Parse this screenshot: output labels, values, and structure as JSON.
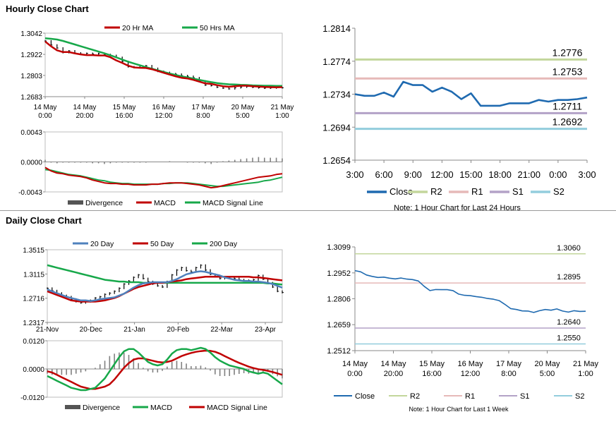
{
  "sections": {
    "hourly_title": "Hourly Close Chart",
    "daily_title": "Daily Close Chart"
  },
  "colors": {
    "price": "#000000",
    "ma_red": "#c00000",
    "ma_green": "#17a84a",
    "ma_blue": "#4f81bd",
    "divergence": "#808080",
    "close": "#1f6ab0",
    "r2": "#c3d69b",
    "r1": "#e6b9b8",
    "s1": "#b3a2c7",
    "s2": "#93cddd"
  },
  "chart_data": [
    {
      "id": "hourly_price",
      "type": "line",
      "ylim": [
        1.2683,
        1.3042
      ],
      "yticks": [
        "1.3042",
        "1.2922",
        "1.2803",
        "1.2683"
      ],
      "xticks": [
        [
          "14 May",
          "0:00"
        ],
        [
          "14 May",
          "20:00"
        ],
        [
          "15 May",
          "16:00"
        ],
        [
          "16 May",
          "12:00"
        ],
        [
          "17 May",
          "8:00"
        ],
        [
          "20 May",
          "5:00"
        ],
        [
          "21 May",
          "1:00"
        ]
      ],
      "legend": [
        "20 Hr MA",
        "50 Hrs MA"
      ],
      "series": [
        {
          "name": "Close",
          "values": [
            1.2998,
            1.2975,
            1.2958,
            1.2932,
            1.2942,
            1.293,
            1.2925,
            1.2928,
            1.2924,
            1.2927,
            1.2921,
            1.2916,
            1.2905,
            1.2882,
            1.2852,
            1.2848,
            1.2857,
            1.2858,
            1.2843,
            1.2826,
            1.282,
            1.2813,
            1.281,
            1.2802,
            1.2798,
            1.279,
            1.2772,
            1.2748,
            1.2745,
            1.2736,
            1.2731,
            1.2727,
            1.2733,
            1.2737,
            1.274,
            1.2736,
            1.2733,
            1.2731,
            1.2732,
            1.2734,
            1.2733
          ]
        },
        {
          "name": "20 Hr MA",
          "values": [
            1.2995,
            1.2968,
            1.2945,
            1.2935,
            1.2935,
            1.2928,
            1.2922,
            1.2918,
            1.2918,
            1.2916,
            1.2916,
            1.2906,
            1.2888,
            1.2874,
            1.2858,
            1.2848,
            1.2846,
            1.2845,
            1.2838,
            1.2828,
            1.2818,
            1.2808,
            1.2798,
            1.279,
            1.2786,
            1.2778,
            1.2768,
            1.2758,
            1.2755,
            1.2748,
            1.2742,
            1.2739,
            1.2742,
            1.2745,
            1.2745,
            1.2742,
            1.274,
            1.2738,
            1.2737,
            1.2736,
            1.2737
          ]
        },
        {
          "name": "50 Hrs MA",
          "values": [
            1.3013,
            1.301,
            1.3006,
            1.2998,
            1.2988,
            1.2978,
            1.2968,
            1.2958,
            1.2948,
            1.2938,
            1.2928,
            1.2917,
            1.2905,
            1.2893,
            1.2881,
            1.287,
            1.286,
            1.285,
            1.2841,
            1.2832,
            1.2823,
            1.2814,
            1.2806,
            1.2798,
            1.2792,
            1.2785,
            1.2778,
            1.2771,
            1.2765,
            1.276,
            1.2756,
            1.2753,
            1.2752,
            1.275,
            1.2749,
            1.2747,
            1.2746,
            1.2745,
            1.2745,
            1.2744,
            1.2744
          ]
        }
      ]
    },
    {
      "id": "hourly_macd",
      "type": "line",
      "ylim": [
        -0.0043,
        0.0043
      ],
      "yticks": [
        "0.0043",
        "0.0000",
        "-0.0043"
      ],
      "legend": [
        "Divergence",
        "MACD",
        "MACD Signal Line"
      ],
      "series": [
        {
          "name": "MACD",
          "values": [
            -0.0008,
            -0.0013,
            -0.0016,
            -0.0017,
            -0.0019,
            -0.002,
            -0.0021,
            -0.0023,
            -0.0026,
            -0.0028,
            -0.003,
            -0.0031,
            -0.0031,
            -0.0032,
            -0.0032,
            -0.0033,
            -0.0033,
            -0.0033,
            -0.0032,
            -0.0032,
            -0.0031,
            -0.003,
            -0.003,
            -0.003,
            -0.0031,
            -0.0032,
            -0.0033,
            -0.0035,
            -0.0037,
            -0.0036,
            -0.0034,
            -0.0032,
            -0.003,
            -0.0028,
            -0.0026,
            -0.0024,
            -0.0022,
            -0.0021,
            -0.002,
            -0.0018,
            -0.0017
          ]
        },
        {
          "name": "MACD Signal Line",
          "values": [
            -0.0011,
            -0.0012,
            -0.0014,
            -0.0016,
            -0.0018,
            -0.0019,
            -0.002,
            -0.0022,
            -0.0024,
            -0.0026,
            -0.0027,
            -0.0029,
            -0.003,
            -0.0031,
            -0.0031,
            -0.0032,
            -0.0032,
            -0.0032,
            -0.0032,
            -0.0032,
            -0.0031,
            -0.0031,
            -0.003,
            -0.003,
            -0.003,
            -0.0031,
            -0.0032,
            -0.0033,
            -0.0034,
            -0.0035,
            -0.0035,
            -0.0034,
            -0.0033,
            -0.0032,
            -0.0031,
            -0.003,
            -0.0029,
            -0.0027,
            -0.0026,
            -0.0024,
            -0.0022
          ]
        },
        {
          "name": "Divergence",
          "values": [
            0.0003,
            -0.0001,
            -0.0002,
            -0.0001,
            -0.0001,
            -0.0001,
            -0.0001,
            -0.0001,
            -0.0002,
            -0.0002,
            -0.0003,
            -0.0002,
            -0.0001,
            -0.0001,
            -0.0001,
            -0.0001,
            -0.0001,
            -0.0001,
            0.0,
            0.0,
            0.0,
            0.0001,
            0.0,
            0.0,
            -0.0001,
            -0.0001,
            -0.0001,
            -0.0002,
            -0.0003,
            -0.0001,
            0.0001,
            0.0002,
            0.0003,
            0.0004,
            0.0005,
            0.0006,
            0.0007,
            0.0006,
            0.0006,
            0.0006,
            0.0005
          ]
        }
      ]
    },
    {
      "id": "hourly_24h",
      "type": "line",
      "ylim": [
        1.2654,
        1.2814
      ],
      "yticks": [
        "1.2814",
        "1.2774",
        "1.2734",
        "1.2694",
        "1.2654"
      ],
      "xticks": [
        "3:00",
        "6:00",
        "9:00",
        "12:00",
        "15:00",
        "18:00",
        "21:00",
        "0:00",
        "3:00"
      ],
      "levels": [
        {
          "name": "R2",
          "value": 1.2776,
          "label": "1.2776"
        },
        {
          "name": "R1",
          "value": 1.2753,
          "label": "1.2753"
        },
        {
          "name": "S1",
          "value": 1.2711,
          "label": "1.2711"
        },
        {
          "name": "S2",
          "value": 1.2692,
          "label": "1.2692"
        }
      ],
      "legend": [
        "Close",
        "R2",
        "R1",
        "S1",
        "S2"
      ],
      "note": "Note: 1 Hour Chart for Last 24 Hours",
      "series": [
        {
          "name": "Close",
          "values": [
            1.2734,
            1.2732,
            1.2732,
            1.2736,
            1.2731,
            1.2749,
            1.2745,
            1.2745,
            1.2737,
            1.2742,
            1.2737,
            1.2728,
            1.2735,
            1.272,
            1.272,
            1.272,
            1.2723,
            1.2723,
            1.2723,
            1.2727,
            1.2725,
            1.2727,
            1.2727,
            1.2728,
            1.273
          ]
        }
      ]
    },
    {
      "id": "daily_price",
      "type": "line",
      "ylim": [
        1.2317,
        1.3515
      ],
      "yticks": [
        "1.3515",
        "1.3115",
        "1.2716",
        "1.2317"
      ],
      "xticks": [
        "21-Nov",
        "20-Dec",
        "21-Jan",
        "20-Feb",
        "22-Mar",
        "23-Apr"
      ],
      "legend": [
        "20 Day",
        "50 Day",
        "200 Day"
      ],
      "series": [
        {
          "name": "Close",
          "values": [
            1.288,
            1.284,
            1.28,
            1.276,
            1.274,
            1.27,
            1.266,
            1.264,
            1.266,
            1.268,
            1.272,
            1.274,
            1.278,
            1.28,
            1.283,
            1.288,
            1.295,
            1.3,
            1.306,
            1.31,
            1.304,
            1.299,
            1.295,
            1.292,
            1.29,
            1.299,
            1.31,
            1.318,
            1.322,
            1.317,
            1.315,
            1.322,
            1.326,
            1.318,
            1.311,
            1.307,
            1.304,
            1.305,
            1.306,
            1.304,
            1.302,
            1.3,
            1.301,
            1.302,
            1.309,
            1.303,
            1.297,
            1.29,
            1.283,
            1.281
          ]
        },
        {
          "name": "20 Day",
          "values": [
            1.286,
            1.283,
            1.28,
            1.277,
            1.274,
            1.272,
            1.27,
            1.268,
            1.268,
            1.267,
            1.268,
            1.27,
            1.271,
            1.272,
            1.273,
            1.276,
            1.279,
            1.284,
            1.289,
            1.293,
            1.296,
            1.297,
            1.298,
            1.298,
            1.298,
            1.298,
            1.3,
            1.303,
            1.307,
            1.311,
            1.313,
            1.315,
            1.316,
            1.315,
            1.313,
            1.311,
            1.309,
            1.306,
            1.304,
            1.302,
            1.301,
            1.3,
            1.3,
            1.299,
            1.299,
            1.298,
            1.297,
            1.295,
            1.292,
            1.289
          ]
        },
        {
          "name": "50 Day",
          "values": [
            1.283,
            1.28,
            1.277,
            1.274,
            1.271,
            1.268,
            1.267,
            1.266,
            1.266,
            1.266,
            1.266,
            1.267,
            1.268,
            1.27,
            1.272,
            1.275,
            1.279,
            1.283,
            1.287,
            1.29,
            1.292,
            1.294,
            1.296,
            1.297,
            1.297,
            1.298,
            1.299,
            1.3,
            1.301,
            1.303,
            1.304,
            1.305,
            1.306,
            1.307,
            1.307,
            1.307,
            1.307,
            1.307,
            1.307,
            1.307,
            1.307,
            1.307,
            1.307,
            1.306,
            1.306,
            1.305,
            1.304,
            1.303,
            1.302,
            1.301
          ]
        },
        {
          "name": "200 Day",
          "values": [
            1.326,
            1.324,
            1.322,
            1.32,
            1.318,
            1.316,
            1.314,
            1.312,
            1.31,
            1.308,
            1.306,
            1.304,
            1.302,
            1.301,
            1.3,
            1.299,
            1.299,
            1.298,
            1.298,
            1.298,
            1.297,
            1.297,
            1.297,
            1.297,
            1.297,
            1.297,
            1.297,
            1.297,
            1.297,
            1.297,
            1.297,
            1.297,
            1.297,
            1.297,
            1.297,
            1.297,
            1.297,
            1.297,
            1.297,
            1.297,
            1.297,
            1.297,
            1.297,
            1.297,
            1.297,
            1.297,
            1.296,
            1.296,
            1.295,
            1.294
          ]
        }
      ]
    },
    {
      "id": "daily_macd",
      "type": "line",
      "ylim": [
        -0.012,
        0.012
      ],
      "yticks": [
        "0.0120",
        "0.0000",
        "-0.0120"
      ],
      "legend": [
        "Divergence",
        "MACD",
        "MACD Signal Line"
      ],
      "series": [
        {
          "name": "MACD",
          "values": [
            -0.003,
            -0.004,
            -0.005,
            -0.006,
            -0.007,
            -0.008,
            -0.0085,
            -0.009,
            -0.009,
            -0.0085,
            -0.008,
            -0.006,
            -0.004,
            -0.001,
            0.002,
            0.005,
            0.0075,
            0.0085,
            0.0085,
            0.007,
            0.005,
            0.003,
            0.002,
            0.0015,
            0.002,
            0.004,
            0.0065,
            0.008,
            0.0085,
            0.0085,
            0.008,
            0.0085,
            0.009,
            0.0085,
            0.007,
            0.005,
            0.0035,
            0.0025,
            0.0015,
            0.001,
            0.0005,
            0.0,
            -0.001,
            -0.0015,
            -0.002,
            -0.0015,
            -0.002,
            -0.0035,
            -0.005,
            -0.0065
          ]
        },
        {
          "name": "MACD Signal Line",
          "values": [
            -0.001,
            -0.0015,
            -0.0025,
            -0.0035,
            -0.0045,
            -0.0055,
            -0.0065,
            -0.0075,
            -0.008,
            -0.0085,
            -0.0085,
            -0.008,
            -0.0075,
            -0.0065,
            -0.0045,
            -0.002,
            0.0005,
            0.0025,
            0.004,
            0.0045,
            0.0045,
            0.004,
            0.0035,
            0.003,
            0.0028,
            0.003,
            0.0035,
            0.0045,
            0.0055,
            0.0062,
            0.0068,
            0.0073,
            0.0076,
            0.0078,
            0.0077,
            0.0073,
            0.0065,
            0.0055,
            0.0045,
            0.0035,
            0.0026,
            0.0018,
            0.001,
            0.0004,
            -0.0001,
            -0.0004,
            -0.0008,
            -0.0013,
            -0.0019,
            -0.0025
          ]
        },
        {
          "name": "Divergence",
          "values": [
            -0.002,
            -0.0025,
            -0.0025,
            -0.0025,
            -0.0025,
            -0.0025,
            -0.002,
            -0.0015,
            -0.001,
            0.0,
            0.0005,
            0.002,
            0.0035,
            0.0055,
            0.0065,
            0.007,
            0.007,
            0.006,
            0.0045,
            0.0025,
            0.0005,
            -0.001,
            -0.0015,
            -0.0015,
            -0.0008,
            0.001,
            0.003,
            0.0035,
            0.003,
            0.0023,
            0.0012,
            0.0012,
            0.0014,
            0.0007,
            -0.0007,
            -0.0023,
            -0.003,
            -0.003,
            -0.003,
            -0.0025,
            -0.0021,
            -0.0018,
            -0.002,
            -0.0019,
            -0.0019,
            -0.0011,
            -0.0012,
            -0.0022,
            -0.0031,
            -0.004
          ]
        }
      ]
    },
    {
      "id": "daily_week",
      "type": "line",
      "ylim": [
        1.2512,
        1.3099
      ],
      "yticks": [
        "1.3099",
        "1.2952",
        "1.2806",
        "1.2659",
        "1.2512"
      ],
      "xticks": [
        [
          "14 May",
          "0:00"
        ],
        [
          "14 May",
          "20:00"
        ],
        [
          "15 May",
          "16:00"
        ],
        [
          "16 May",
          "12:00"
        ],
        [
          "17 May",
          "8:00"
        ],
        [
          "20 May",
          "5:00"
        ],
        [
          "21 May",
          "1:00"
        ]
      ],
      "levels": [
        {
          "name": "R2",
          "value": 1.306,
          "label": "1.3060"
        },
        {
          "name": "R1",
          "value": 1.2895,
          "label": "1.2895"
        },
        {
          "name": "S1",
          "value": 1.264,
          "label": "1.2640"
        },
        {
          "name": "S2",
          "value": 1.255,
          "label": "1.2550"
        }
      ],
      "legend": [
        "Close",
        "R2",
        "R1",
        "S1",
        "S2"
      ],
      "note": "Note: 1 Hour Chart for Last 1 Week",
      "series": [
        {
          "name": "Close",
          "values": [
            1.2965,
            1.2958,
            1.294,
            1.2932,
            1.2926,
            1.2928,
            1.2922,
            1.2918,
            1.2923,
            1.2917,
            1.2914,
            1.2906,
            1.2876,
            1.2852,
            1.2858,
            1.2857,
            1.2857,
            1.2852,
            1.2832,
            1.2825,
            1.2823,
            1.2818,
            1.2814,
            1.2807,
            1.2803,
            1.2795,
            1.2774,
            1.275,
            1.2745,
            1.2737,
            1.2736,
            1.2728,
            1.2738,
            1.2745,
            1.2741,
            1.2748,
            1.2736,
            1.273,
            1.2738,
            1.2734,
            1.2735
          ]
        }
      ]
    }
  ]
}
